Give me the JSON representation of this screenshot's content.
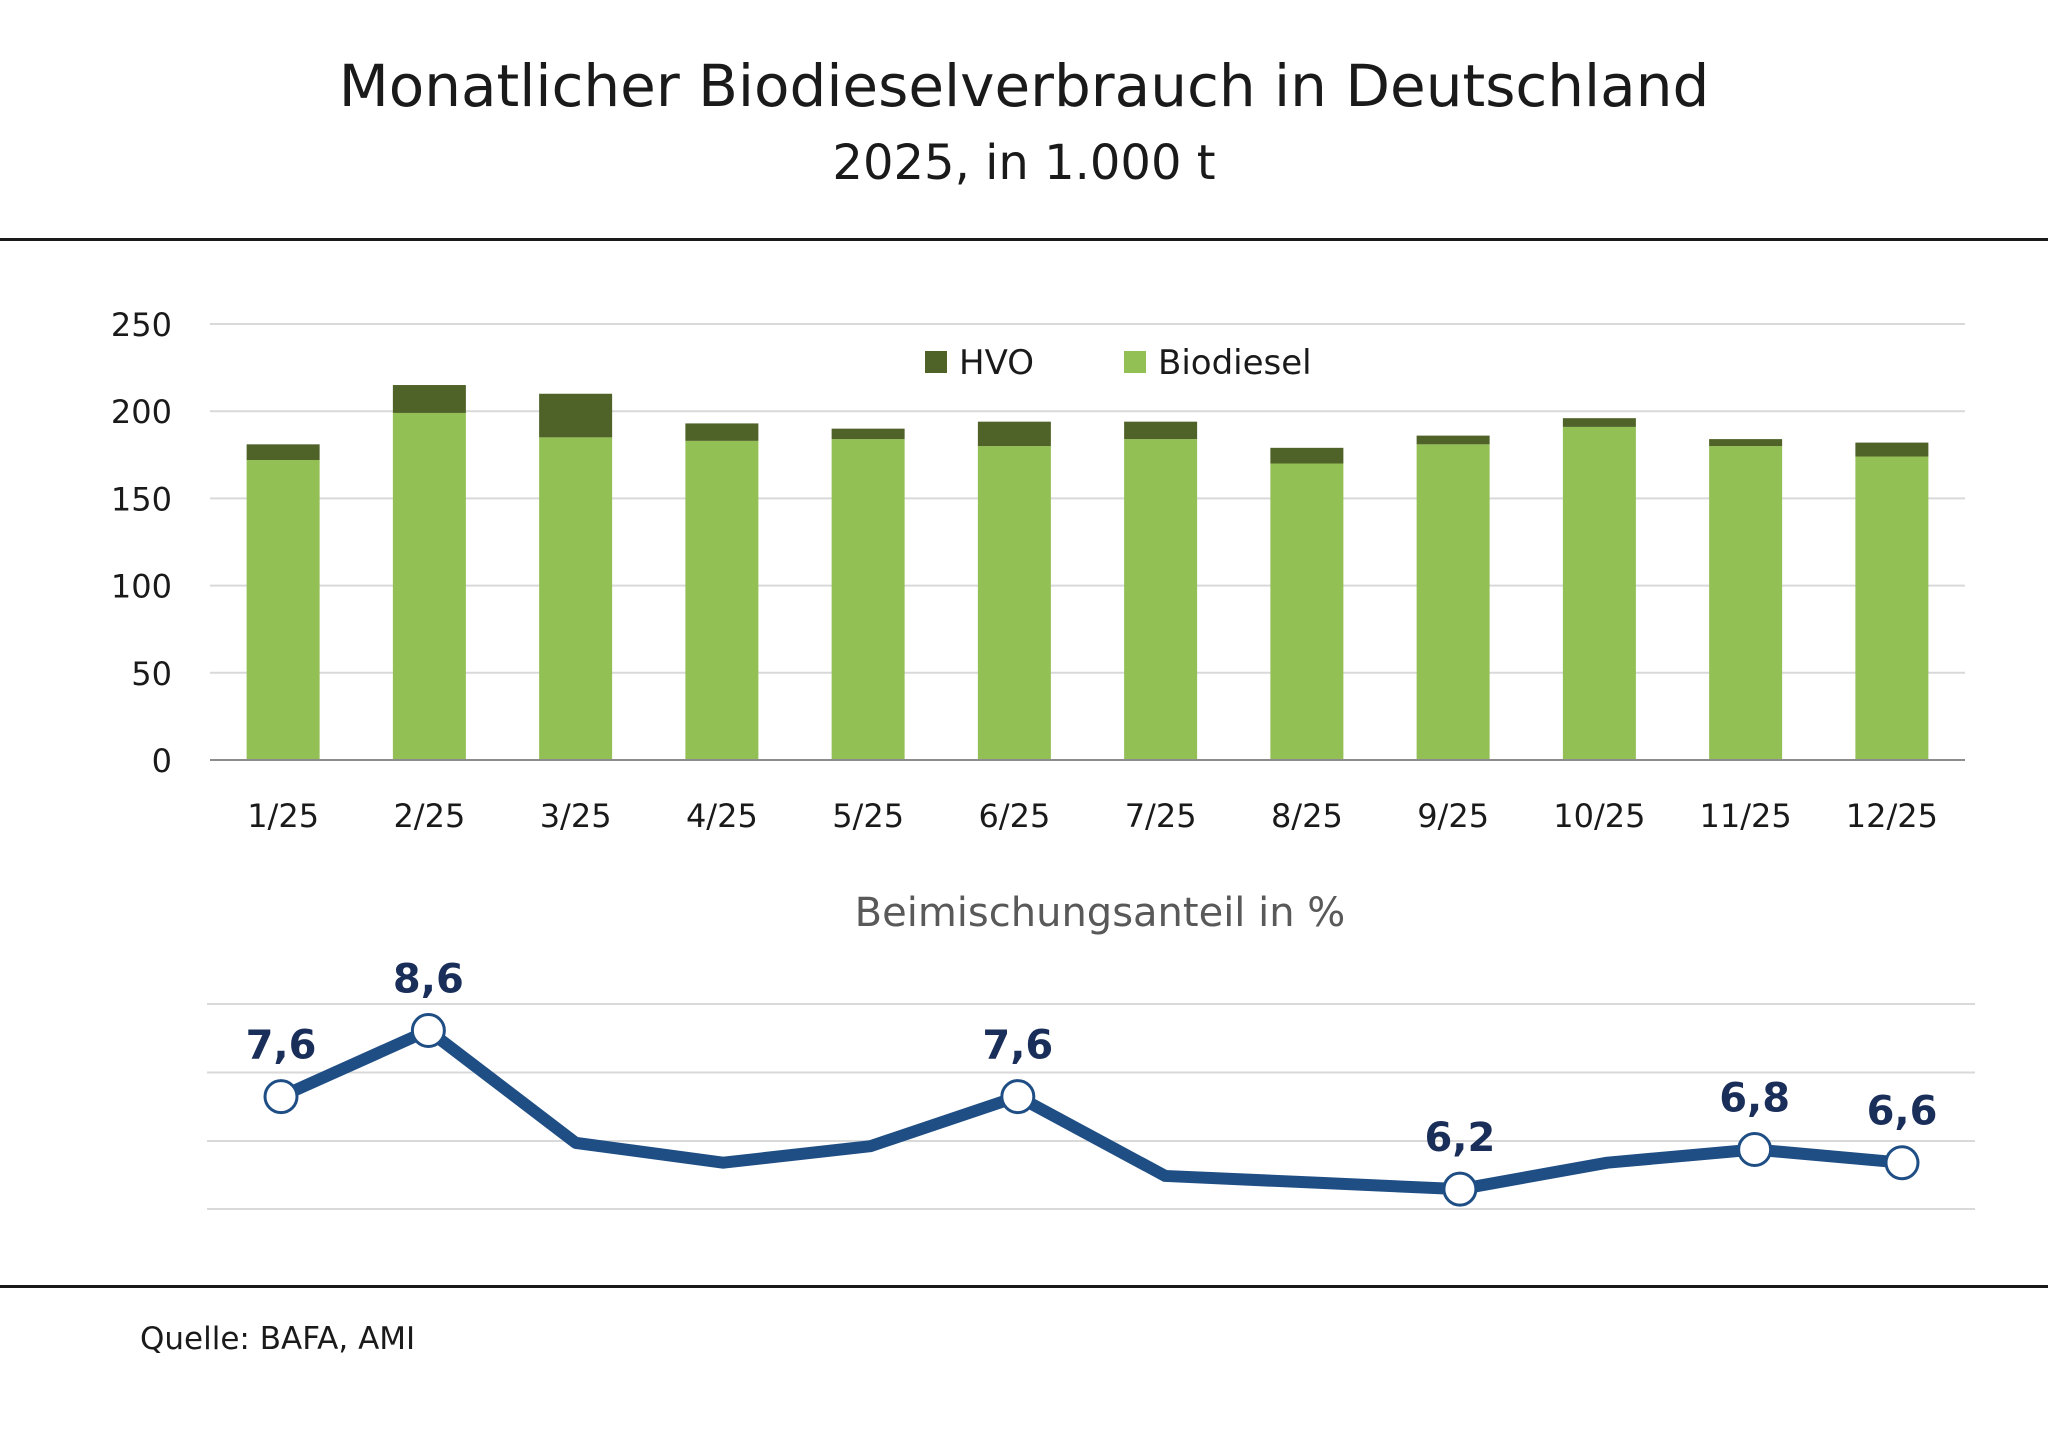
{
  "title": "Monatlicher Biodieselverbrauch in Deutschland",
  "subtitle": "2025, in 1.000 t",
  "source": "Quelle: BAFA, AMI",
  "colors": {
    "biodiesel": "#93c055",
    "hvo": "#4f6228",
    "line": "#1f4e85",
    "grid": "#d9d9d9",
    "label": "#1a2e5a"
  },
  "chart_data": [
    {
      "type": "bar",
      "stacked": true,
      "categories": [
        "1/25",
        "2/25",
        "3/25",
        "4/25",
        "5/25",
        "6/25",
        "7/25",
        "8/25",
        "9/25",
        "10/25",
        "11/25",
        "12/25"
      ],
      "series": [
        {
          "name": "Biodiesel",
          "values": [
            172,
            199,
            185,
            183,
            184,
            180,
            184,
            170,
            181,
            191,
            180,
            174
          ]
        },
        {
          "name": "HVO",
          "values": [
            9,
            16,
            25,
            10,
            6,
            14,
            10,
            9,
            5,
            5,
            4,
            8
          ]
        }
      ],
      "yticks": [
        "0",
        "50",
        "100",
        "150",
        "200",
        "250"
      ],
      "ylim": [
        0,
        250
      ],
      "legend": "top-center",
      "grid": true
    },
    {
      "type": "line",
      "title": "Beimischungsanteil in %",
      "categories": [
        "1/25",
        "2/25",
        "3/25",
        "4/25",
        "5/25",
        "6/25",
        "7/25",
        "8/25",
        "9/25",
        "10/25",
        "11/25",
        "12/25"
      ],
      "values": [
        7.6,
        8.6,
        6.9,
        6.6,
        6.85,
        7.6,
        6.4,
        6.3,
        6.2,
        6.6,
        6.8,
        6.6
      ],
      "labels": [
        "7,6",
        "8,6",
        "",
        "",
        "",
        "7,6",
        "",
        "",
        "6,2",
        "",
        "6,8",
        "6,6"
      ],
      "ylim": [
        5.9,
        9.0
      ],
      "grid": true
    }
  ]
}
